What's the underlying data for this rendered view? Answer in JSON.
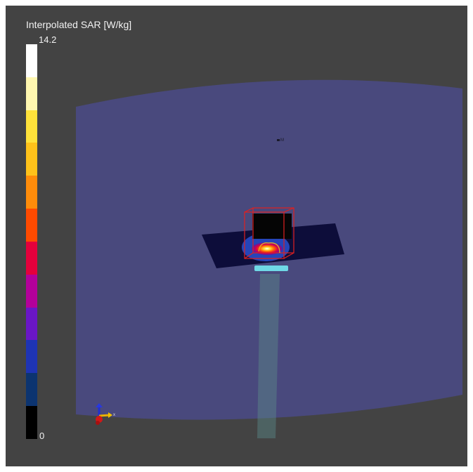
{
  "colorbar": {
    "title": "Interpolated SAR [W/kg]",
    "max_label": "14.2",
    "min_label": "0",
    "colors": [
      "#ffffff",
      "#fff7b0",
      "#ffe23a",
      "#ffc21a",
      "#ff8c0a",
      "#ff4a00",
      "#e4003c",
      "#b3009a",
      "#6a16c6",
      "#1e34b4",
      "#0c3470",
      "#000000"
    ]
  },
  "axes_triad": {
    "x_label": "x"
  },
  "probe_marker": {
    "label": "M"
  }
}
